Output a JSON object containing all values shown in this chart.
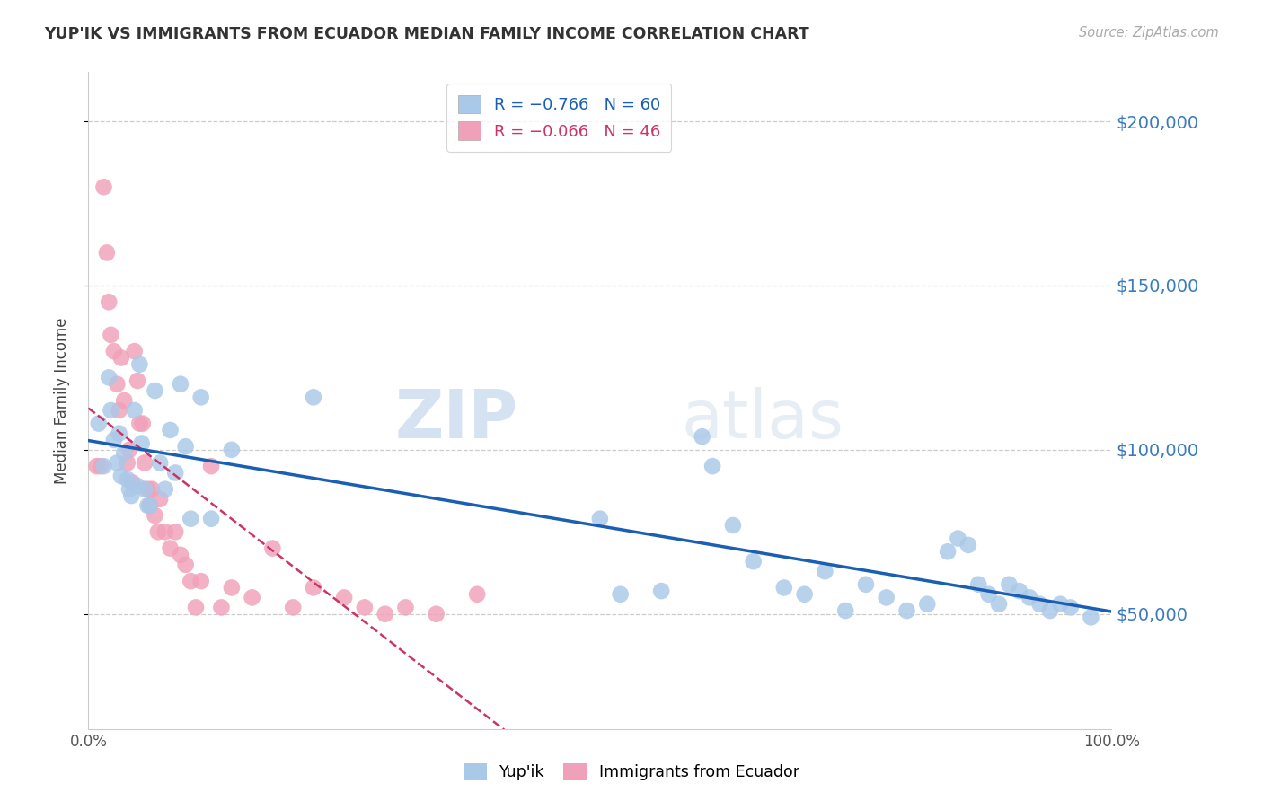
{
  "title": "YUP'IK VS IMMIGRANTS FROM ECUADOR MEDIAN FAMILY INCOME CORRELATION CHART",
  "source": "Source: ZipAtlas.com",
  "ylabel": "Median Family Income",
  "x_min": 0.0,
  "x_max": 1.0,
  "y_min": 15000,
  "y_max": 215000,
  "yticks": [
    50000,
    100000,
    150000,
    200000
  ],
  "ytick_labels": [
    "$50,000",
    "$100,000",
    "$150,000",
    "$200,000"
  ],
  "xtick_positions": [
    0.0,
    0.1,
    0.2,
    0.3,
    0.4,
    0.5,
    0.6,
    0.7,
    0.8,
    0.9,
    1.0
  ],
  "xtick_labels": [
    "0.0%",
    "",
    "",
    "",
    "",
    "",
    "",
    "",
    "",
    "",
    "100.0%"
  ],
  "blue_color": "#aac8e8",
  "blue_line_color": "#1a5fb4",
  "pink_color": "#f0a0b8",
  "pink_line_color": "#cc3366",
  "legend_line1": "R = −0.766   N = 60",
  "legend_line2": "R = −0.066   N = 46",
  "label1": "Yup'ik",
  "label2": "Immigrants from Ecuador",
  "watermark_zip": "ZIP",
  "watermark_atlas": "atlas",
  "blue_x": [
    0.01,
    0.015,
    0.02,
    0.022,
    0.025,
    0.028,
    0.03,
    0.032,
    0.035,
    0.038,
    0.04,
    0.042,
    0.045,
    0.048,
    0.05,
    0.052,
    0.055,
    0.058,
    0.06,
    0.065,
    0.07,
    0.075,
    0.08,
    0.085,
    0.09,
    0.095,
    0.1,
    0.11,
    0.12,
    0.14,
    0.22,
    0.5,
    0.52,
    0.56,
    0.6,
    0.61,
    0.63,
    0.65,
    0.68,
    0.7,
    0.72,
    0.74,
    0.76,
    0.78,
    0.8,
    0.82,
    0.84,
    0.85,
    0.86,
    0.87,
    0.88,
    0.89,
    0.9,
    0.91,
    0.92,
    0.93,
    0.94,
    0.95,
    0.96,
    0.98
  ],
  "blue_y": [
    108000,
    95000,
    122000,
    112000,
    103000,
    96000,
    105000,
    92000,
    99000,
    91000,
    88000,
    86000,
    112000,
    89000,
    126000,
    102000,
    88000,
    83000,
    83000,
    118000,
    96000,
    88000,
    106000,
    93000,
    120000,
    101000,
    79000,
    116000,
    79000,
    100000,
    116000,
    79000,
    56000,
    57000,
    104000,
    95000,
    77000,
    66000,
    58000,
    56000,
    63000,
    51000,
    59000,
    55000,
    51000,
    53000,
    69000,
    73000,
    71000,
    59000,
    56000,
    53000,
    59000,
    57000,
    55000,
    53000,
    51000,
    53000,
    52000,
    49000
  ],
  "pink_x": [
    0.008,
    0.012,
    0.015,
    0.018,
    0.02,
    0.022,
    0.025,
    0.028,
    0.03,
    0.032,
    0.035,
    0.038,
    0.04,
    0.043,
    0.045,
    0.048,
    0.05,
    0.053,
    0.055,
    0.058,
    0.06,
    0.062,
    0.065,
    0.068,
    0.07,
    0.075,
    0.08,
    0.085,
    0.09,
    0.095,
    0.1,
    0.105,
    0.11,
    0.12,
    0.13,
    0.14,
    0.16,
    0.18,
    0.2,
    0.22,
    0.25,
    0.27,
    0.29,
    0.31,
    0.34,
    0.38
  ],
  "pink_y": [
    95000,
    95000,
    180000,
    160000,
    145000,
    135000,
    130000,
    120000,
    112000,
    128000,
    115000,
    96000,
    100000,
    90000,
    130000,
    121000,
    108000,
    108000,
    96000,
    88000,
    83000,
    88000,
    80000,
    75000,
    85000,
    75000,
    70000,
    75000,
    68000,
    65000,
    60000,
    52000,
    60000,
    95000,
    52000,
    58000,
    55000,
    70000,
    52000,
    58000,
    55000,
    52000,
    50000,
    52000,
    50000,
    56000
  ]
}
